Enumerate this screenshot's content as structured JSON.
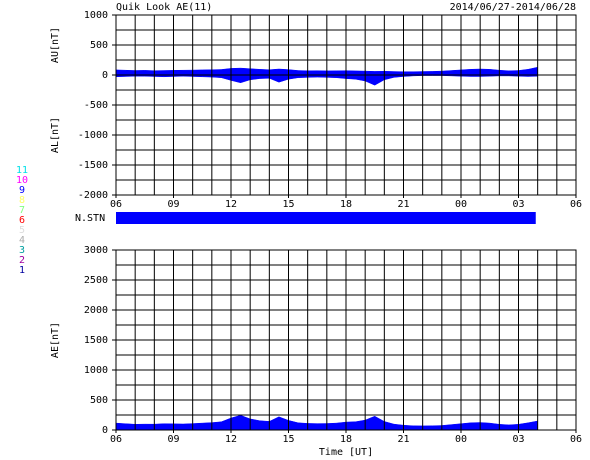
{
  "header": {
    "title": "Quik Look AE(11)",
    "date": "2014/06/27-2014/06/28"
  },
  "chart_data": [
    {
      "type": "area",
      "ylabels": [
        "AU[nT]",
        "AL[nT]"
      ],
      "x": [
        0,
        0.5,
        1,
        1.5,
        2,
        2.5,
        3,
        3.5,
        4,
        4.5,
        5,
        5.5,
        6,
        6.5,
        7,
        7.5,
        8,
        8.5,
        9,
        9.5,
        10,
        10.5,
        11,
        11.5,
        12,
        12.5,
        13,
        13.5,
        14,
        14.5,
        15,
        15.5,
        16,
        16.5,
        17,
        17.5,
        18,
        18.5,
        19,
        19.5,
        20,
        20.5,
        21,
        21.5,
        22
      ],
      "series": [
        {
          "color": "#0000ff",
          "values": [
            85,
            80,
            75,
            78,
            72,
            75,
            78,
            80,
            82,
            85,
            88,
            92,
            110,
            115,
            105,
            95,
            88,
            100,
            90,
            75,
            70,
            72,
            68,
            70,
            72,
            68,
            65,
            60,
            62,
            58,
            55,
            55,
            58,
            60,
            65,
            75,
            85,
            95,
            100,
            95,
            80,
            70,
            75,
            95,
            130
          ]
        },
        {
          "color": "#0000ff",
          "values": [
            -30,
            -25,
            -20,
            -20,
            -25,
            -30,
            -25,
            -20,
            -25,
            -30,
            -35,
            -45,
            -90,
            -130,
            -80,
            -60,
            -55,
            -120,
            -70,
            -45,
            -40,
            -35,
            -40,
            -45,
            -60,
            -70,
            -100,
            -170,
            -80,
            -40,
            -25,
            -15,
            -10,
            -10,
            -10,
            -15,
            -20,
            -25,
            -25,
            -20,
            -15,
            -15,
            -20,
            -25,
            -20
          ]
        }
      ],
      "xlim": [
        0,
        24
      ],
      "xticks": [
        {
          "value": 0,
          "label": "06"
        },
        {
          "value": 3,
          "label": "09"
        },
        {
          "value": 6,
          "label": "12"
        },
        {
          "value": 9,
          "label": "15"
        },
        {
          "value": 12,
          "label": "18"
        },
        {
          "value": 15,
          "label": "21"
        },
        {
          "value": 18,
          "label": "00"
        },
        {
          "value": 21,
          "label": "03"
        },
        {
          "value": 24,
          "label": "06"
        }
      ],
      "xgrid": [
        0,
        1,
        2,
        3,
        4,
        5,
        6,
        7,
        8,
        9,
        10,
        11,
        12,
        13,
        14,
        15,
        16,
        17,
        18,
        19,
        20,
        21,
        22,
        23,
        24
      ],
      "ylim": [
        -2000,
        1000
      ],
      "yticks": [
        -2000,
        -1500,
        -1000,
        -500,
        0,
        500,
        1000
      ],
      "ygrid": [
        -2000,
        -1750,
        -1500,
        -1250,
        -1000,
        -750,
        -500,
        -250,
        0,
        250,
        500,
        750,
        1000
      ]
    },
    {
      "type": "area",
      "ylabels": [
        "AE[nT]"
      ],
      "xlabel": "Time [UT]",
      "x": [
        0,
        0.5,
        1,
        1.5,
        2,
        2.5,
        3,
        3.5,
        4,
        4.5,
        5,
        5.5,
        6,
        6.5,
        7,
        7.5,
        8,
        8.5,
        9,
        9.5,
        10,
        10.5,
        11,
        11.5,
        12,
        12.5,
        13,
        13.5,
        14,
        14.5,
        15,
        15.5,
        16,
        16.5,
        17,
        17.5,
        18,
        18.5,
        19,
        19.5,
        20,
        20.5,
        21,
        21.5,
        22
      ],
      "series": [
        {
          "color": "#0000ff",
          "values": [
            115,
            105,
            95,
            98,
            97,
            105,
            103,
            100,
            107,
            115,
            123,
            137,
            200,
            245,
            185,
            155,
            143,
            220,
            160,
            120,
            110,
            107,
            108,
            115,
            132,
            138,
            165,
            230,
            142,
            98,
            80,
            70,
            68,
            70,
            75,
            90,
            105,
            120,
            125,
            115,
            95,
            85,
            95,
            120,
            150
          ]
        }
      ],
      "xlim": [
        0,
        24
      ],
      "xticks": [
        {
          "value": 0,
          "label": "06"
        },
        {
          "value": 3,
          "label": "09"
        },
        {
          "value": 6,
          "label": "12"
        },
        {
          "value": 9,
          "label": "15"
        },
        {
          "value": 12,
          "label": "18"
        },
        {
          "value": 15,
          "label": "21"
        },
        {
          "value": 18,
          "label": "00"
        },
        {
          "value": 21,
          "label": "03"
        },
        {
          "value": 24,
          "label": "06"
        }
      ],
      "xgrid": [
        0,
        1,
        2,
        3,
        4,
        5,
        6,
        7,
        8,
        9,
        10,
        11,
        12,
        13,
        14,
        15,
        16,
        17,
        18,
        19,
        20,
        21,
        22,
        23,
        24
      ],
      "ylim": [
        0,
        3000
      ],
      "yticks": [
        0,
        500,
        1000,
        1500,
        2000,
        2500,
        3000
      ],
      "ygrid": [
        0,
        250,
        500,
        750,
        1000,
        1250,
        1500,
        1750,
        2000,
        2250,
        2500,
        2750,
        3000
      ]
    }
  ],
  "stations": {
    "label": "N.STN",
    "x": [
      0,
      21.9
    ],
    "count": 9,
    "legend": [
      {
        "label": "11",
        "color": "#00e0e8"
      },
      {
        "label": "10",
        "color": "#ff00ff"
      },
      {
        "label": "9",
        "color": "#0000ff"
      },
      {
        "label": "8",
        "color": "#ffff66"
      },
      {
        "label": "7",
        "color": "#80ff80"
      },
      {
        "label": "6",
        "color": "#ff0000"
      },
      {
        "label": "5",
        "color": "#dddddd"
      },
      {
        "label": "4",
        "color": "#aaaaaa"
      },
      {
        "label": "3",
        "color": "#00a0a0"
      },
      {
        "label": "2",
        "color": "#a000a0"
      },
      {
        "label": "1",
        "color": "#0000a0"
      }
    ]
  }
}
